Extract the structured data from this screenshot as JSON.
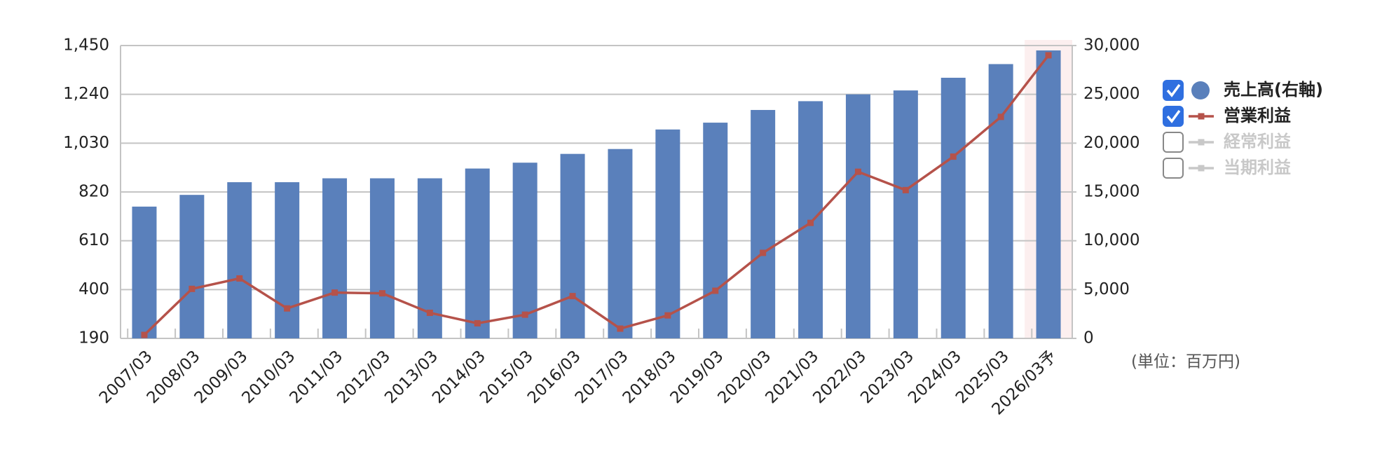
{
  "chart_data": {
    "type": "bar-line",
    "categories": [
      "2007/03",
      "2008/03",
      "2009/03",
      "2010/03",
      "2011/03",
      "2012/03",
      "2013/03",
      "2014/03",
      "2015/03",
      "2016/03",
      "2017/03",
      "2018/03",
      "2019/03",
      "2020/03",
      "2021/03",
      "2022/03",
      "2023/03",
      "2024/03",
      "2025/03",
      "2026/03予"
    ],
    "series": [
      {
        "name": "売上高(右軸)",
        "kind": "bar",
        "axis": "y2",
        "color": "#5a80bb",
        "checked": true,
        "values": [
          13500,
          14700,
          16000,
          16000,
          16400,
          16400,
          16400,
          17400,
          18000,
          18900,
          19400,
          21400,
          22100,
          23400,
          24300,
          25000,
          25400,
          26700,
          28100,
          29500
        ]
      },
      {
        "name": "営業利益",
        "kind": "line",
        "color": "#b5524a",
        "checked": true,
        "values": [
          205,
          403,
          448,
          319,
          387,
          384,
          300,
          255,
          292,
          372,
          232,
          289,
          395,
          558,
          687,
          907,
          828,
          972,
          1143,
          1408
        ]
      },
      {
        "name": "経常利益",
        "kind": "line",
        "color": "#c8c8c8",
        "checked": false
      },
      {
        "name": "当期利益",
        "kind": "line",
        "color": "#c8c8c8",
        "checked": false
      }
    ],
    "ylim": [
      190,
      1450
    ],
    "yticks": [
      190,
      400,
      610,
      820,
      {
        "value": 1030,
        "label": "1,030"
      },
      {
        "value": 1240,
        "label": "1,240"
      },
      {
        "value": 1450,
        "label": "1,450"
      }
    ],
    "y2lim": [
      0,
      30000
    ],
    "y2ticks": [
      0,
      {
        "value": 5000,
        "label": "5,000"
      },
      {
        "value": 10000,
        "label": "10,000"
      },
      {
        "value": 15000,
        "label": "15,000"
      },
      {
        "value": 20000,
        "label": "20,000"
      },
      {
        "value": 25000,
        "label": "25,000"
      },
      {
        "value": 30000,
        "label": "30,000"
      }
    ],
    "grid": true,
    "highlight_last": true,
    "unit_note": "(単位：百万円)"
  }
}
